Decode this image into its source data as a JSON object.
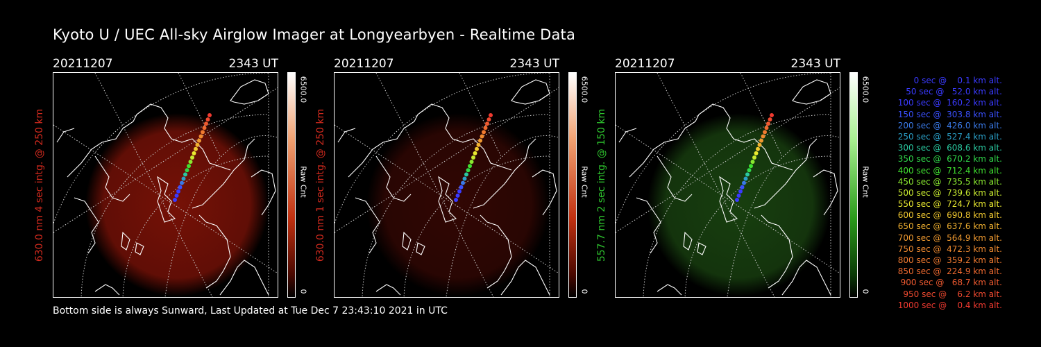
{
  "title": "Kyoto U / UEC All-sky Airglow Imager at Longyearbyen - Realtime Data",
  "footer": "Bottom side is always Sunward, Last Updated at Tue Dec  7 23:43:10 2021 in UTC",
  "panels": [
    {
      "date": "20211207",
      "time": "2343 UT",
      "ylabel": "630.0 nm 4 sec intg. @ 250 km",
      "label_color": "#d22a1e",
      "cb_max": "6500.0",
      "cb_min": "0",
      "cb_unit": "Raw Cnt",
      "colormap": "red",
      "glow_color": "#8a1408"
    },
    {
      "date": "20211207",
      "time": "2343 UT",
      "ylabel": "630.0 nm 1 sec intg. @ 250 km",
      "label_color": "#d22a1e",
      "cb_max": "6500.0",
      "cb_min": "0",
      "cb_unit": "Raw Cnt",
      "colormap": "red",
      "glow_color": "#3a0804"
    },
    {
      "date": "20211207",
      "time": "2343 UT",
      "ylabel": "557.7 nm 2 sec intg. @ 150 km",
      "label_color": "#2ec42e",
      "cb_max": "6500.0",
      "cb_min": "0",
      "cb_unit": "Raw Cnt",
      "colormap": "green",
      "glow_color": "#1c4a12"
    }
  ],
  "legend": [
    {
      "text": "   0 sec @    0.1 km alt.",
      "color": "#3a3aff"
    },
    {
      "text": "  50 sec @   52.0 km alt.",
      "color": "#3a3aff"
    },
    {
      "text": " 100 sec @  160.2 km alt.",
      "color": "#3a3aff"
    },
    {
      "text": " 150 sec @  303.8 km alt.",
      "color": "#3a50ff"
    },
    {
      "text": " 200 sec @  426.0 km alt.",
      "color": "#3a7ae8"
    },
    {
      "text": " 250 sec @  527.4 km alt.",
      "color": "#2aa0c8"
    },
    {
      "text": " 300 sec @  608.6 km alt.",
      "color": "#2ac8a0"
    },
    {
      "text": " 350 sec @  670.2 km alt.",
      "color": "#30d84a"
    },
    {
      "text": " 400 sec @  712.4 km alt.",
      "color": "#40e030"
    },
    {
      "text": " 450 sec @  735.5 km alt.",
      "color": "#8ae830"
    },
    {
      "text": " 500 sec @  739.6 km alt.",
      "color": "#c8ea30"
    },
    {
      "text": " 550 sec @  724.7 km alt.",
      "color": "#eaea30"
    },
    {
      "text": " 600 sec @  690.8 km alt.",
      "color": "#f0c830"
    },
    {
      "text": " 650 sec @  637.6 km alt.",
      "color": "#f0b030"
    },
    {
      "text": " 700 sec @  564.9 km alt.",
      "color": "#f09a30"
    },
    {
      "text": " 750 sec @  472.3 km alt.",
      "color": "#f08a30"
    },
    {
      "text": " 800 sec @  359.2 km alt.",
      "color": "#f07a30"
    },
    {
      "text": " 850 sec @  224.9 km alt.",
      "color": "#f06a30"
    },
    {
      "text": " 900 sec @   68.7 km alt.",
      "color": "#f05a30"
    },
    {
      "text": " 950 sec @    6.2 km alt.",
      "color": "#f04a30"
    },
    {
      "text": "1000 sec @    0.4 km alt.",
      "color": "#f03a30"
    }
  ]
}
